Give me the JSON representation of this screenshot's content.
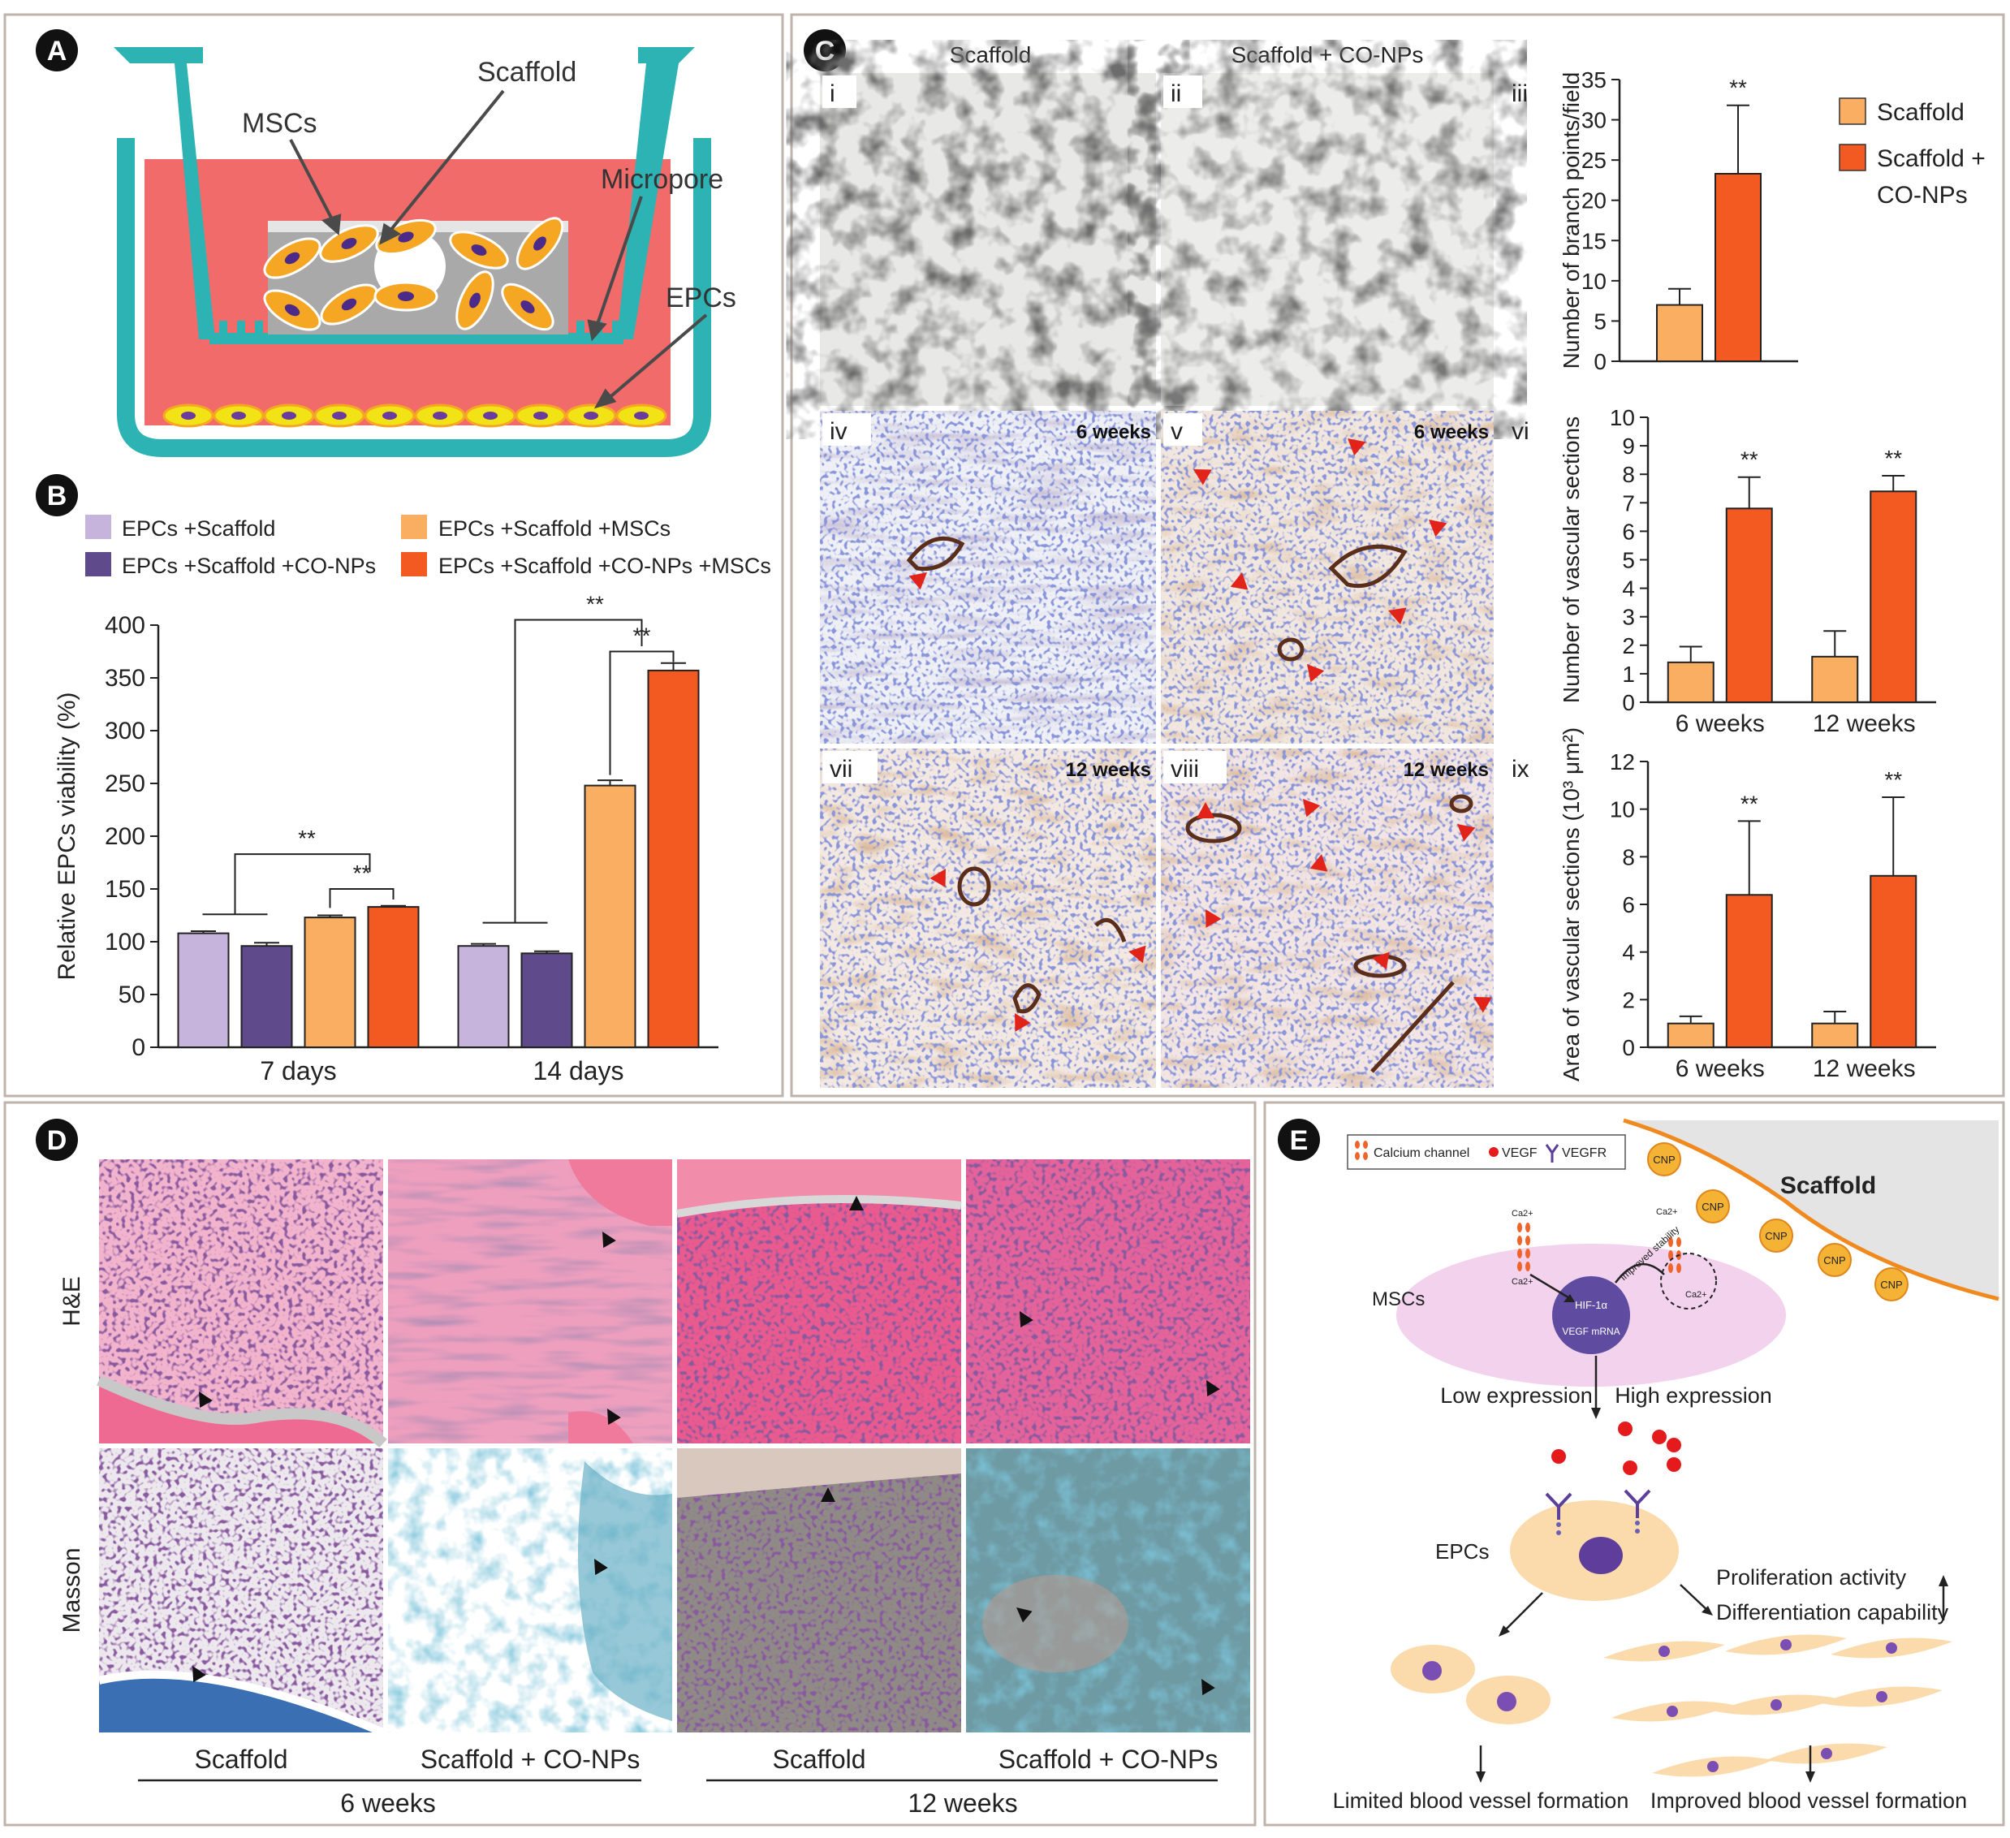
{
  "panel_letters": {
    "a": "A",
    "b": "B",
    "c": "C",
    "d": "D",
    "e": "E"
  },
  "panel_a": {
    "labels": {
      "scaffold": "Scaffold",
      "mscs": "MSCs",
      "micropore": "Micropore",
      "epcs": "EPCs"
    }
  },
  "panel_b": {
    "legend": [
      "EPCs +Scaffold",
      "EPCs +Scaffold +CO-NPs",
      "EPCs +Scaffold +MSCs",
      "EPCs +Scaffold +CO-NPs +MSCs"
    ],
    "colors": [
      "#c7b4dc",
      "#5f4b8b",
      "#f9ae62",
      "#f25a22"
    ],
    "significance": "**"
  },
  "panel_c": {
    "col_titles": [
      "Scaffold",
      "Scaffold + CO-NPs"
    ],
    "roman": [
      "i",
      "ii",
      "iii",
      "iv",
      "v",
      "vi",
      "vii",
      "viii",
      "ix"
    ],
    "week_labels": [
      "6 weeks",
      "6 weeks",
      "12 weeks",
      "12 weeks"
    ],
    "legend": [
      "Scaffold",
      "Scaffold +",
      "CO-NPs"
    ],
    "colors": [
      "#f9ae62",
      "#f25a22"
    ],
    "significance": "**"
  },
  "panel_d": {
    "row_labels": [
      "H&E",
      "Masson"
    ],
    "col_labels": [
      "Scaffold",
      "Scaffold + CO-NPs",
      "Scaffold",
      "Scaffold + CO-NPs"
    ],
    "group_labels": [
      "6 weeks",
      "12 weeks"
    ]
  },
  "panel_e": {
    "legend": [
      "Calcium channel",
      "VEGF",
      "VEGFR"
    ],
    "scaffold": "Scaffold",
    "cnp": "CNP",
    "ca": "Ca2+",
    "mscs": "MSCs",
    "hif": "HIF-1α",
    "vegf_mrna": "VEGF mRNA",
    "stability": "Improved stability",
    "low": "Low expression",
    "high": "High expression",
    "epcs": "EPCs",
    "prolif": "Proliferation activity",
    "diff": "Differentiation capability",
    "limited": "Limited blood vessel formation",
    "improved": "Improved blood vessel formation"
  },
  "chart_data": [
    {
      "id": "B",
      "type": "bar",
      "categories": [
        "7 days",
        "14 days"
      ],
      "ylabel": "Relative EPCs viability (%)",
      "ylim": [
        0,
        400
      ],
      "yticks": [
        0,
        50,
        100,
        150,
        200,
        250,
        300,
        350,
        400
      ],
      "series": [
        {
          "name": "EPCs +Scaffold",
          "values": [
            108,
            96
          ],
          "errors": [
            2,
            2
          ]
        },
        {
          "name": "EPCs +Scaffold +CO-NPs",
          "values": [
            96,
            89
          ],
          "errors": [
            3,
            2
          ]
        },
        {
          "name": "EPCs +Scaffold +MSCs",
          "values": [
            123,
            248
          ],
          "errors": [
            2,
            5
          ]
        },
        {
          "name": "EPCs +Scaffold +CO-NPs +MSCs",
          "values": [
            133,
            357
          ],
          "errors": [
            1,
            7
          ]
        }
      ],
      "legend": "top"
    },
    {
      "id": "C-iii",
      "type": "bar",
      "categories": [
        ""
      ],
      "ylabel": "Number of branch points/field",
      "ylim": [
        0,
        35
      ],
      "yticks": [
        0,
        5,
        10,
        15,
        20,
        25,
        30,
        35
      ],
      "series": [
        {
          "name": "Scaffold",
          "values": [
            7
          ],
          "errors": [
            2
          ]
        },
        {
          "name": "Scaffold + CO-NPs",
          "values": [
            23.3
          ],
          "errors": [
            8.5
          ]
        }
      ],
      "legend": "right"
    },
    {
      "id": "C-vi",
      "type": "bar",
      "categories": [
        "6 weeks",
        "12 weeks"
      ],
      "ylabel": "Number of vascular sections",
      "ylim": [
        0,
        10
      ],
      "yticks": [
        0,
        1,
        2,
        3,
        4,
        5,
        6,
        7,
        8,
        9,
        10
      ],
      "series": [
        {
          "name": "Scaffold",
          "values": [
            1.4,
            1.6
          ],
          "errors": [
            0.55,
            0.9
          ]
        },
        {
          "name": "Scaffold + CO-NPs",
          "values": [
            6.8,
            7.4
          ],
          "errors": [
            1.1,
            0.55
          ]
        }
      ]
    },
    {
      "id": "C-ix",
      "type": "bar",
      "categories": [
        "6 weeks",
        "12 weeks"
      ],
      "ylabel": "Area of vascular sections (10³ μm²)",
      "ylim": [
        0,
        12
      ],
      "yticks": [
        0,
        2,
        4,
        6,
        8,
        10,
        12
      ],
      "series": [
        {
          "name": "Scaffold",
          "values": [
            1.0,
            1.0
          ],
          "errors": [
            0.3,
            0.5
          ]
        },
        {
          "name": "Scaffold + CO-NPs",
          "values": [
            6.4,
            7.2
          ],
          "errors": [
            3.1,
            3.3
          ]
        }
      ]
    }
  ]
}
